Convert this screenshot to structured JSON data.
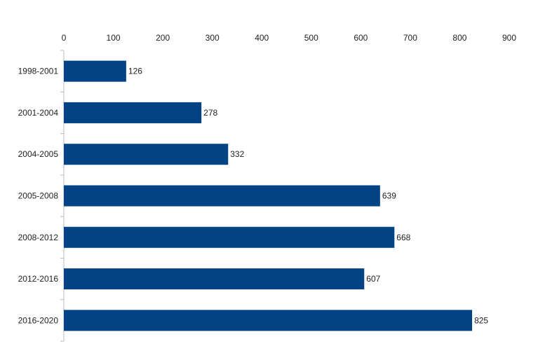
{
  "chart_data": {
    "type": "bar",
    "orientation": "horizontal",
    "categories": [
      "1998-2001",
      "2001-2004",
      "2004-2005",
      "2005-2008",
      "2008-2012",
      "2012-2016",
      "2016-2020"
    ],
    "values": [
      126,
      278,
      332,
      639,
      668,
      607,
      825
    ],
    "value_labels": [
      "126",
      "278",
      "332",
      "639",
      "668",
      "607",
      "825"
    ],
    "x_ticks": [
      "0",
      "100",
      "200",
      "300",
      "400",
      "500",
      "600",
      "700",
      "800",
      "900"
    ],
    "xlim": [
      0,
      900
    ],
    "x_axis_position": "top",
    "bar_color": "#034385",
    "axis_color": "#bbbbbb",
    "grid": false,
    "legend": "none",
    "title": "",
    "xlabel": "",
    "ylabel": ""
  }
}
